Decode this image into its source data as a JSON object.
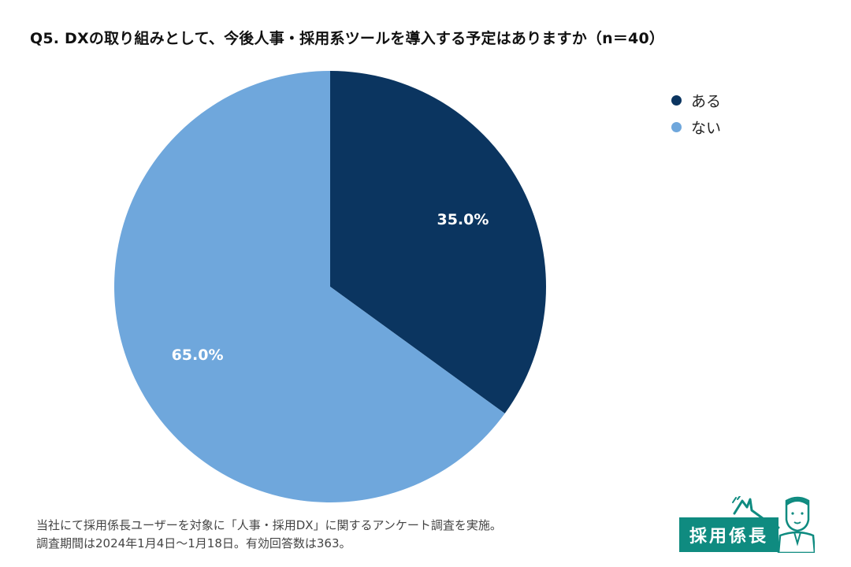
{
  "title": "Q5. DXの取り組みとして、今後人事・採用系ツールを導入する予定はありますか（n＝40）",
  "chart_data": {
    "type": "pie",
    "title": "Q5. DXの取り組みとして、今後人事・採用系ツールを導入する予定はありますか（n＝40）",
    "categories": [
      "ある",
      "ない"
    ],
    "values": [
      35.0,
      65.0
    ],
    "labels": [
      "35.0%",
      "65.0%"
    ],
    "colors": [
      "#0b3560",
      "#6fa7dc"
    ],
    "label_color": "#ffffff",
    "start": "12 o'clock",
    "direction": "clockwise",
    "legend_position": "top-right"
  },
  "legend": [
    {
      "label": "ある",
      "color": "#0b3560"
    },
    {
      "label": "ない",
      "color": "#6fa7dc"
    }
  ],
  "footnote": {
    "line1": "当社にて採用係長ユーザーを対象に「人事・採用DX」に関するアンケート調査を実施。",
    "line2": "調査期間は2024年1月4日〜1月18日。有効回答数は363。"
  },
  "logo": {
    "text": "採用係長",
    "color": "#0f8b80",
    "icon": "waving-man-icon"
  }
}
